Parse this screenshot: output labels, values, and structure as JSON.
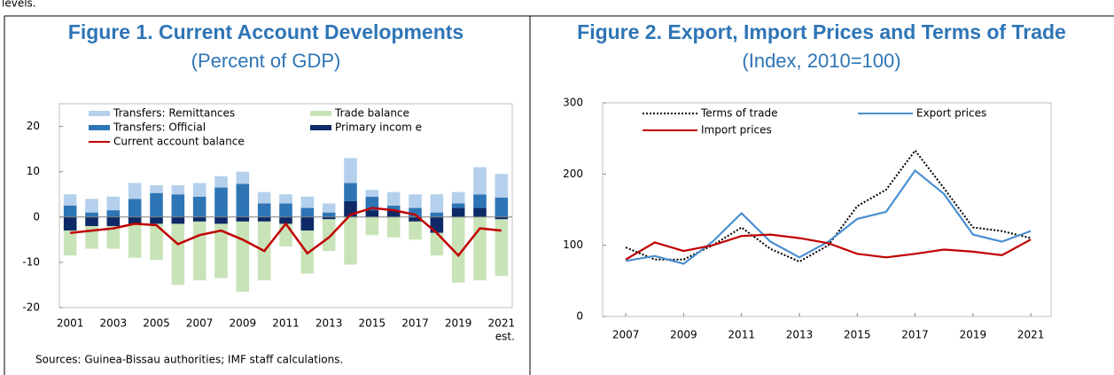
{
  "page": {
    "fragment": "levels."
  },
  "chart_data": [
    {
      "type": "bar",
      "stacked": true,
      "title": "Figure 1. Current Account Developments",
      "subtitle": "(Percent of GDP)",
      "source": "Sources: Guinea-Bissau authorities; IMF staff calculations.",
      "x_annotation": "est.",
      "categories": [
        "2001",
        null,
        "2003",
        null,
        "2005",
        null,
        "2007",
        null,
        "2009",
        null,
        "2011",
        null,
        "2013",
        null,
        "2015",
        null,
        "2017",
        null,
        "2019",
        null,
        "2021"
      ],
      "ylim": [
        -20,
        25
      ],
      "yticks": [
        -20,
        -10,
        0,
        10,
        20
      ],
      "grid": false,
      "legend": "upper left",
      "series": [
        {
          "name": "Transfers: Remittances",
          "color": "#b4d0ec",
          "values": [
            2.5,
            3,
            3,
            3.5,
            1.7,
            2,
            3,
            2.5,
            2.7,
            2.5,
            2,
            2.5,
            2,
            5.5,
            1.5,
            3,
            3,
            4,
            2.5,
            6,
            5.2
          ]
        },
        {
          "name": "Trade balance",
          "color": "#c9e3b8",
          "values": [
            -5.5,
            -5,
            -5,
            -7.5,
            -8,
            -13.5,
            -13,
            -12,
            -15.5,
            -13,
            -5,
            -9.5,
            -7,
            -10.5,
            -4,
            -4.5,
            -4,
            -5,
            -14.5,
            -14,
            -12.5
          ]
        },
        {
          "name": "Transfers: Official",
          "color": "#2e75b6",
          "values": [
            2.5,
            1,
            1.5,
            4,
            5.3,
            5,
            4.5,
            6.5,
            7.3,
            3,
            3,
            2,
            1,
            4,
            3,
            1,
            2,
            1,
            1,
            3,
            4.3
          ]
        },
        {
          "name": "Primary incom e",
          "color": "#0d2a66",
          "values": [
            -3,
            -2,
            -2,
            -1.5,
            -1.5,
            -1.5,
            -1,
            -1.5,
            -1,
            -1,
            -1.5,
            -3,
            -0.5,
            3.5,
            1.5,
            1.5,
            -1,
            -3.5,
            2,
            2,
            -0.5
          ]
        },
        {
          "name": "Current account balance",
          "color": "#c00000",
          "type": "line",
          "values": [
            -3.5,
            -3,
            -2.5,
            -1.5,
            -1.8,
            -6,
            -4,
            -3,
            -5,
            -7.5,
            -1.5,
            -8,
            -4.5,
            0.5,
            2,
            1.5,
            0.5,
            -3.5,
            -8.5,
            -2.5,
            -3
          ]
        }
      ]
    },
    {
      "type": "line",
      "title": "Figure 2. Export, Import Prices and Terms of Trade",
      "subtitle": "(Index, 2010=100)",
      "x": [
        2007,
        2008,
        2009,
        2010,
        2011,
        2012,
        2013,
        2014,
        2015,
        2016,
        2017,
        2018,
        2019,
        2020,
        2021
      ],
      "xlim": [
        2006.2,
        2021.7
      ],
      "xticks": [
        2007,
        2009,
        2011,
        2013,
        2015,
        2017,
        2019,
        2021
      ],
      "ylim": [
        0,
        300
      ],
      "yticks": [
        0,
        100,
        200,
        300
      ],
      "grid": false,
      "legend": "upper left",
      "series": [
        {
          "name": "Terms of trade",
          "color": "#000000",
          "style": "dotted",
          "values": [
            97,
            80,
            80,
            100,
            125,
            95,
            77,
            100,
            155,
            178,
            233,
            180,
            125,
            120,
            110
          ]
        },
        {
          "name": "Export prices",
          "color": "#4a8fd0",
          "style": "solid",
          "values": [
            78,
            85,
            74,
            105,
            145,
            105,
            83,
            105,
            137,
            147,
            205,
            172,
            115,
            105,
            120
          ]
        },
        {
          "name": "Import prices",
          "color": "#c00000",
          "style": "solid",
          "values": [
            80,
            104,
            92,
            100,
            113,
            115,
            110,
            103,
            88,
            83,
            88,
            94,
            91,
            86,
            108
          ]
        }
      ]
    }
  ]
}
